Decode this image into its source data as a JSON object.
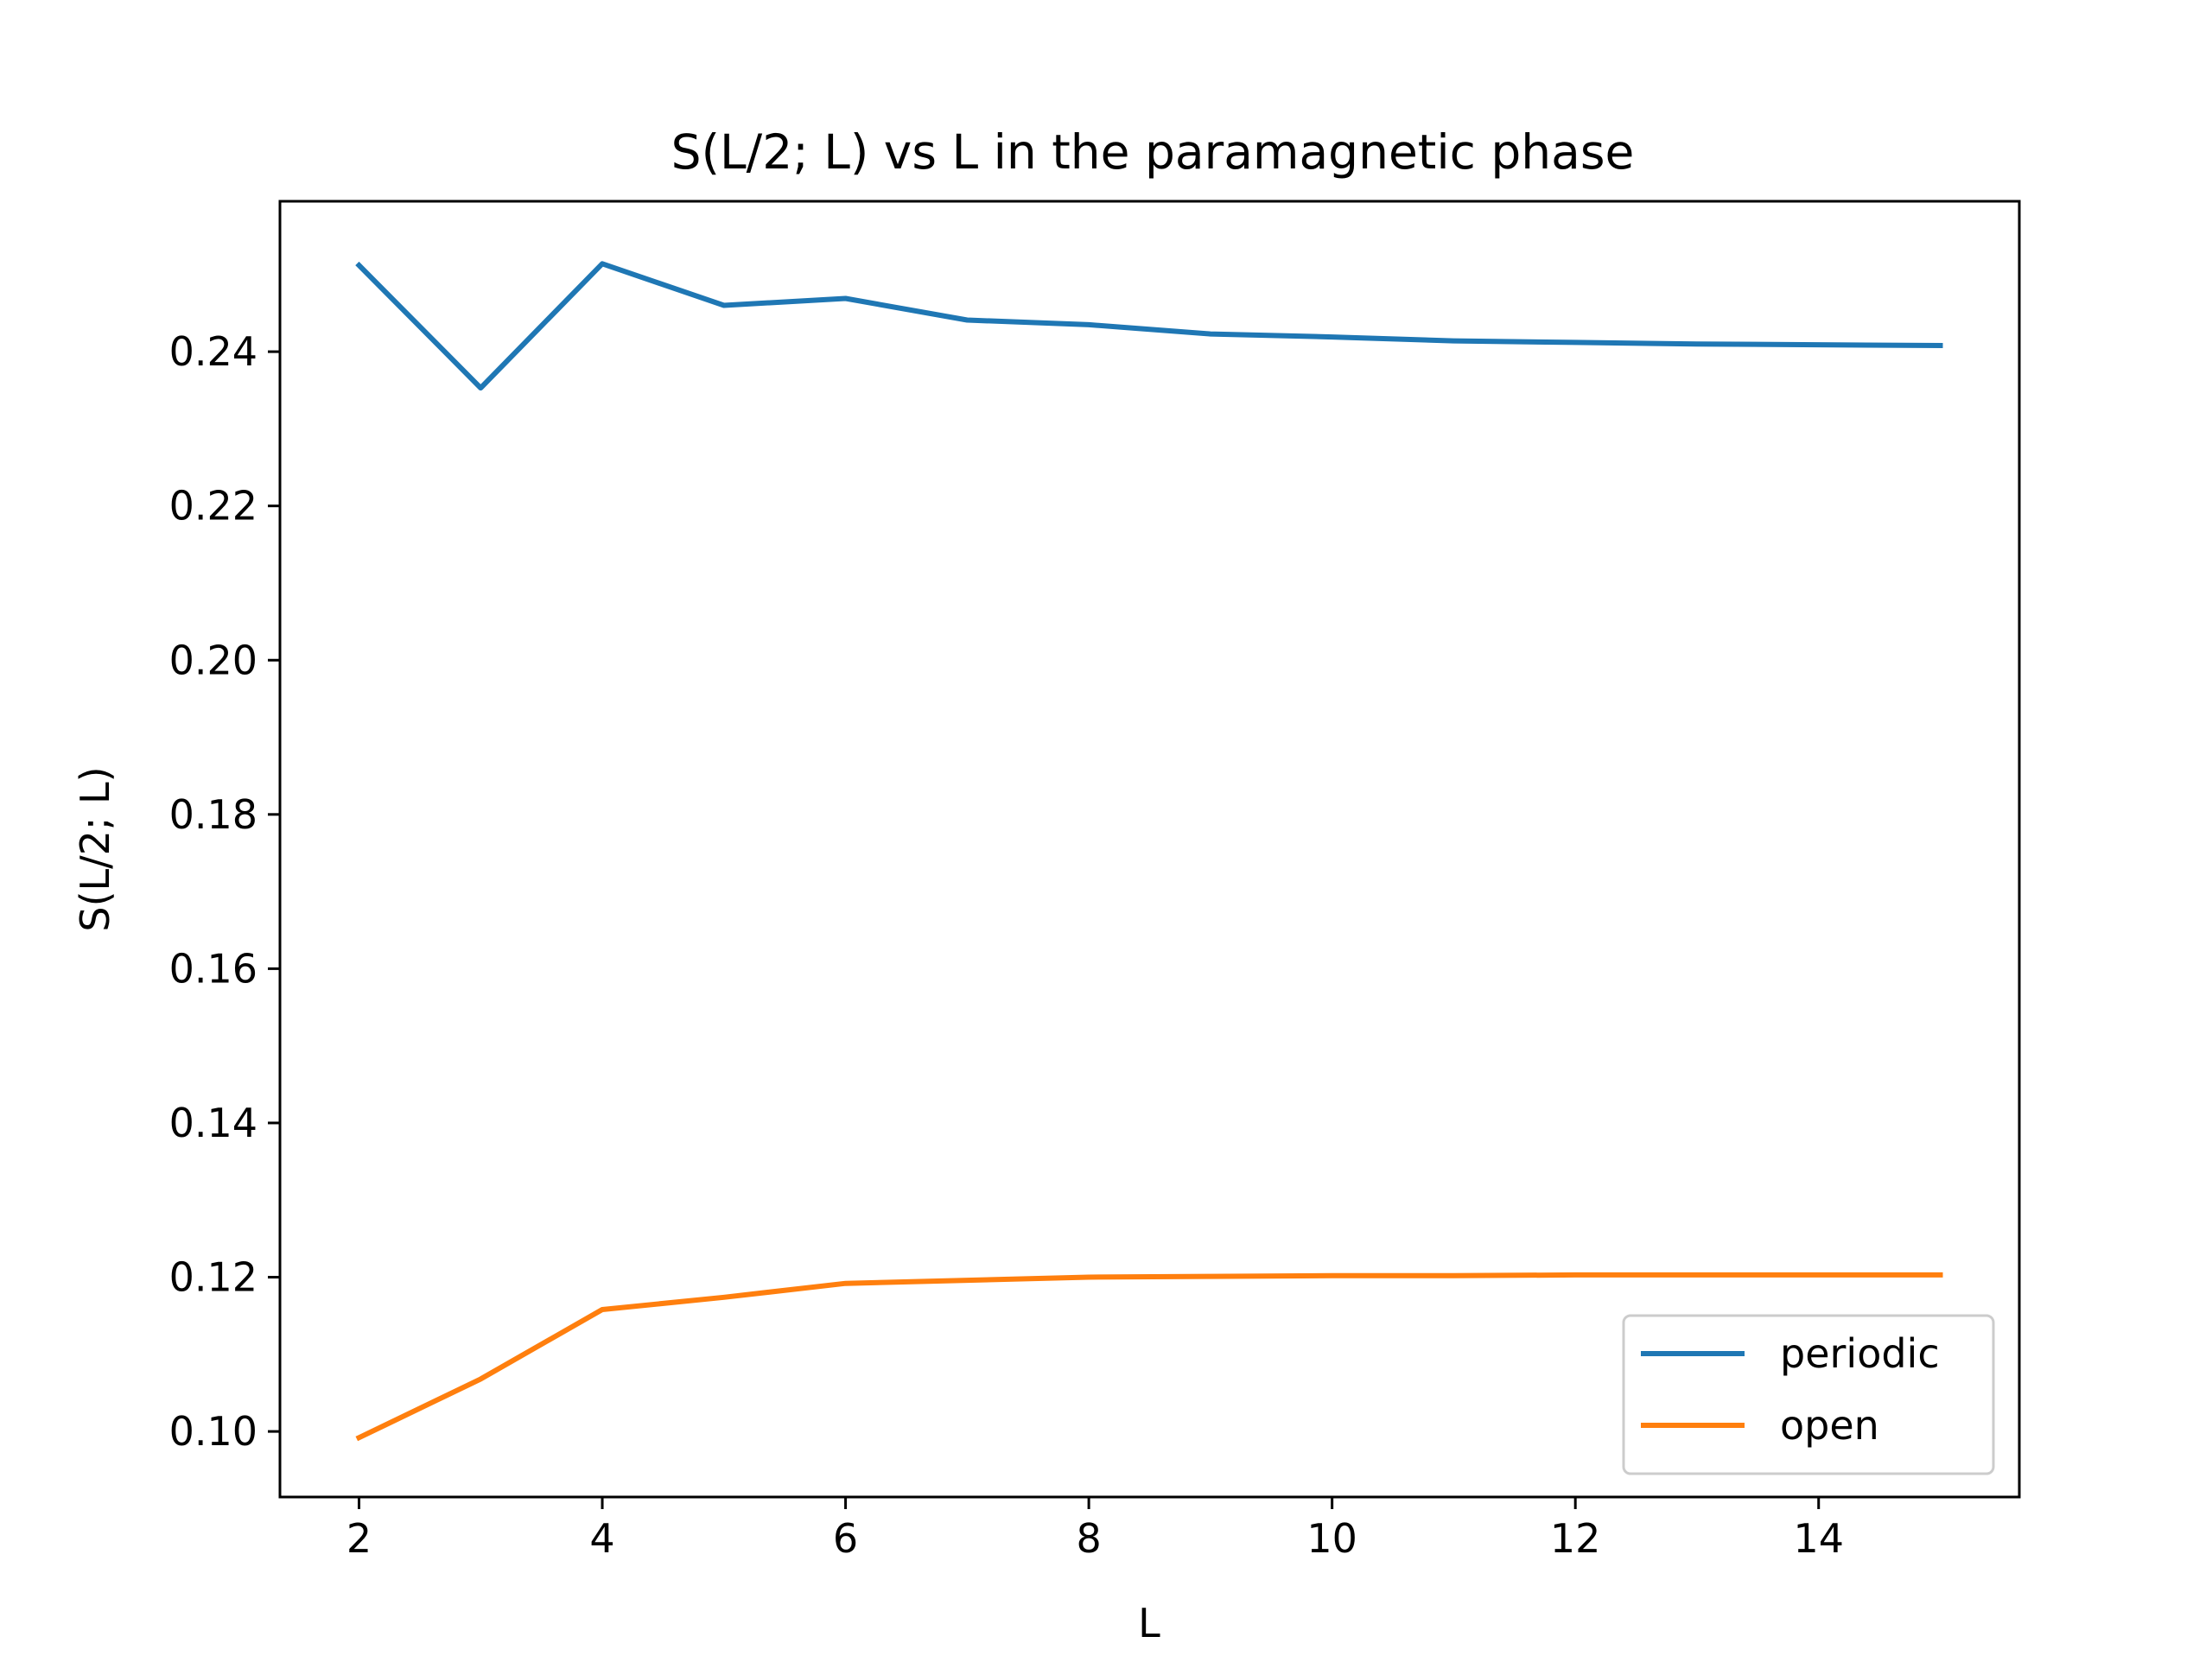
{
  "chart_data": {
    "type": "line",
    "title": "S(L/2; L) vs L in the paramagnetic phase",
    "xlabel": "L",
    "ylabel": "S(L/2; L)",
    "xlim": [
      1.35,
      15.65
    ],
    "ylim": [
      0.0915,
      0.2595
    ],
    "xticks": [
      2,
      4,
      6,
      8,
      10,
      12,
      14
    ],
    "xtick_labels": [
      "2",
      "4",
      "6",
      "8",
      "10",
      "12",
      "14"
    ],
    "yticks": [
      0.1,
      0.12,
      0.14,
      0.16,
      0.18,
      0.2,
      0.22,
      0.24
    ],
    "ytick_labels": [
      "0.10",
      "0.12",
      "0.14",
      "0.16",
      "0.18",
      "0.20",
      "0.22",
      "0.24"
    ],
    "grid": false,
    "legend_position": "lower-right",
    "x": [
      2,
      3,
      4,
      5,
      6,
      7,
      8,
      9,
      10,
      11,
      12,
      13,
      14,
      15
    ],
    "series": [
      {
        "name": "periodic",
        "color": "#1f77b4",
        "values": [
          0.2512,
          0.2353,
          0.2514,
          0.246,
          0.2469,
          0.2441,
          0.2435,
          0.2423,
          0.2419,
          0.2414,
          0.2412,
          0.241,
          0.2409,
          0.2408
        ]
      },
      {
        "name": "open",
        "color": "#ff7f0e",
        "values": [
          0.0992,
          0.1068,
          0.1158,
          0.1174,
          0.1192,
          0.1196,
          0.12,
          0.1201,
          0.1202,
          0.1202,
          0.1203,
          0.1203,
          0.1203,
          0.1203
        ]
      }
    ]
  }
}
